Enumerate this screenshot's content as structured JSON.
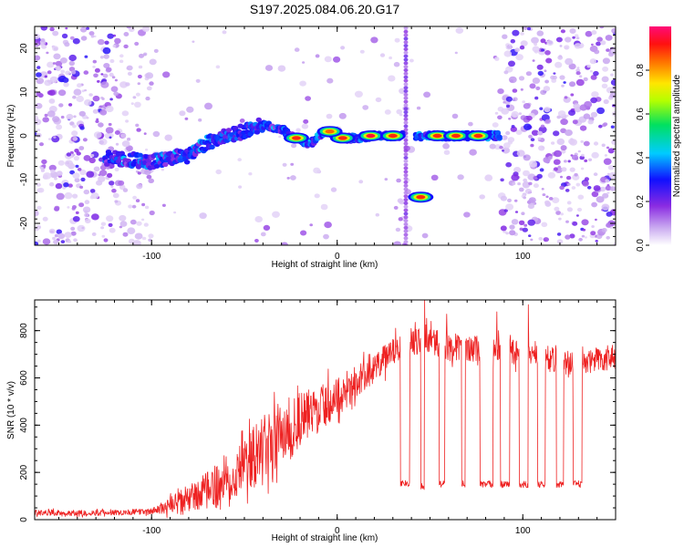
{
  "chart_data": [
    {
      "type": "heatmap",
      "title": "S197.2025.084.06.20.G17",
      "xlabel": "Height of straight line (km)",
      "ylabel": "Frequency (Hz)",
      "xlim": [
        -163,
        150
      ],
      "ylim": [
        -25,
        25
      ],
      "x_ticks": [
        -100,
        0,
        100
      ],
      "y_ticks": [
        -20,
        -10,
        0,
        10,
        20
      ],
      "colorbar": {
        "label": "Normalized spectral amplitude",
        "range": [
          0,
          1
        ],
        "ticks": [
          0.0,
          0.2,
          0.4,
          0.6,
          0.8
        ],
        "colormap": "rainbow (white to violet, blue, cyan, green, yellow, red, magenta)"
      },
      "ridge": [
        {
          "x": -125,
          "y": -5.0
        },
        {
          "x": -110,
          "y": -5.5
        },
        {
          "x": -100,
          "y": -6.0
        },
        {
          "x": -90,
          "y": -5.0
        },
        {
          "x": -80,
          "y": -4.5
        },
        {
          "x": -70,
          "y": -1.5
        },
        {
          "x": -60,
          "y": 0.0
        },
        {
          "x": -50,
          "y": 1.0
        },
        {
          "x": -40,
          "y": 2.5
        },
        {
          "x": -30,
          "y": 1.5
        },
        {
          "x": -22,
          "y": -0.5
        },
        {
          "x": -15,
          "y": -2.0
        },
        {
          "x": -8,
          "y": 0.5
        },
        {
          "x": -5,
          "y": 1.0
        },
        {
          "x": 0,
          "y": -0.5
        },
        {
          "x": 10,
          "y": -0.5
        },
        {
          "x": 20,
          "y": 0.0
        },
        {
          "x": 30,
          "y": 0.0
        },
        {
          "x": 45,
          "y": -14.0
        },
        {
          "x": 55,
          "y": 0.0
        },
        {
          "x": 65,
          "y": 0.0
        },
        {
          "x": 75,
          "y": 0.0
        },
        {
          "x": 85,
          "y": 0.0
        }
      ],
      "strong_peaks": [
        {
          "x": -22,
          "y": -0.5,
          "amplitude": 0.9
        },
        {
          "x": 3,
          "y": -0.5,
          "amplitude": 0.9
        },
        {
          "x": 18,
          "y": 0.0,
          "amplitude": 0.95
        },
        {
          "x": 30,
          "y": 0.0,
          "amplitude": 0.9
        },
        {
          "x": 45,
          "y": -14.0,
          "amplitude": 0.9
        },
        {
          "x": 54,
          "y": 0.0,
          "amplitude": 0.9
        },
        {
          "x": 64,
          "y": 0.0,
          "amplitude": 0.9
        },
        {
          "x": 76,
          "y": 0.0,
          "amplitude": 0.9
        },
        {
          "x": -4,
          "y": 1.0,
          "amplitude": 0.85
        }
      ]
    },
    {
      "type": "line",
      "xlabel": "Height of straight line (km)",
      "ylabel": "SNR (10 * v/v)",
      "xlim": [
        -163,
        150
      ],
      "ylim": [
        0,
        930
      ],
      "x_ticks": [
        -100,
        0,
        100
      ],
      "y_ticks": [
        0,
        200,
        400,
        600,
        800
      ],
      "color": "#ee2222",
      "trend": [
        {
          "x": -163,
          "y": 30
        },
        {
          "x": -140,
          "y": 28
        },
        {
          "x": -120,
          "y": 30
        },
        {
          "x": -100,
          "y": 35
        },
        {
          "x": -90,
          "y": 60
        },
        {
          "x": -80,
          "y": 90
        },
        {
          "x": -70,
          "y": 120
        },
        {
          "x": -60,
          "y": 170
        },
        {
          "x": -50,
          "y": 230
        },
        {
          "x": -40,
          "y": 300
        },
        {
          "x": -30,
          "y": 360
        },
        {
          "x": -20,
          "y": 420
        },
        {
          "x": -10,
          "y": 470
        },
        {
          "x": 0,
          "y": 520
        },
        {
          "x": 10,
          "y": 580
        },
        {
          "x": 20,
          "y": 640
        },
        {
          "x": 30,
          "y": 710
        },
        {
          "x": 40,
          "y": 750
        },
        {
          "x": 50,
          "y": 760
        },
        {
          "x": 60,
          "y": 730
        },
        {
          "x": 70,
          "y": 730
        },
        {
          "x": 80,
          "y": 720
        },
        {
          "x": 90,
          "y": 720
        },
        {
          "x": 100,
          "y": 700
        },
        {
          "x": 110,
          "y": 690
        },
        {
          "x": 120,
          "y": 670
        },
        {
          "x": 130,
          "y": 660
        },
        {
          "x": 140,
          "y": 680
        },
        {
          "x": 150,
          "y": 670
        }
      ],
      "noise_amplitude": [
        {
          "x": -163,
          "y": 12
        },
        {
          "x": -100,
          "y": 12
        },
        {
          "x": -80,
          "y": 60
        },
        {
          "x": -60,
          "y": 100
        },
        {
          "x": -40,
          "y": 140
        },
        {
          "x": -20,
          "y": 120
        },
        {
          "x": 0,
          "y": 80
        },
        {
          "x": 20,
          "y": 60
        },
        {
          "x": 40,
          "y": 60
        },
        {
          "x": 150,
          "y": 50
        }
      ],
      "dropouts": [
        {
          "x_start": 34,
          "x_end": 39,
          "y": 155
        },
        {
          "x_start": 45,
          "x_end": 47,
          "y": 140
        },
        {
          "x_start": 55,
          "x_end": 58,
          "y": 150
        },
        {
          "x_start": 67,
          "x_end": 69,
          "y": 150
        },
        {
          "x_start": 77,
          "x_end": 84,
          "y": 150
        },
        {
          "x_start": 88,
          "x_end": 93,
          "y": 150
        },
        {
          "x_start": 98,
          "x_end": 103,
          "y": 150
        },
        {
          "x_start": 108,
          "x_end": 112,
          "y": 150
        },
        {
          "x_start": 118,
          "x_end": 122,
          "y": 150
        },
        {
          "x_start": 127,
          "x_end": 132,
          "y": 150
        }
      ],
      "spikes": [
        {
          "x": 47,
          "y": 930
        },
        {
          "x": 59,
          "y": 870
        },
        {
          "x": 86,
          "y": 880
        },
        {
          "x": 103,
          "y": 910
        }
      ]
    }
  ]
}
